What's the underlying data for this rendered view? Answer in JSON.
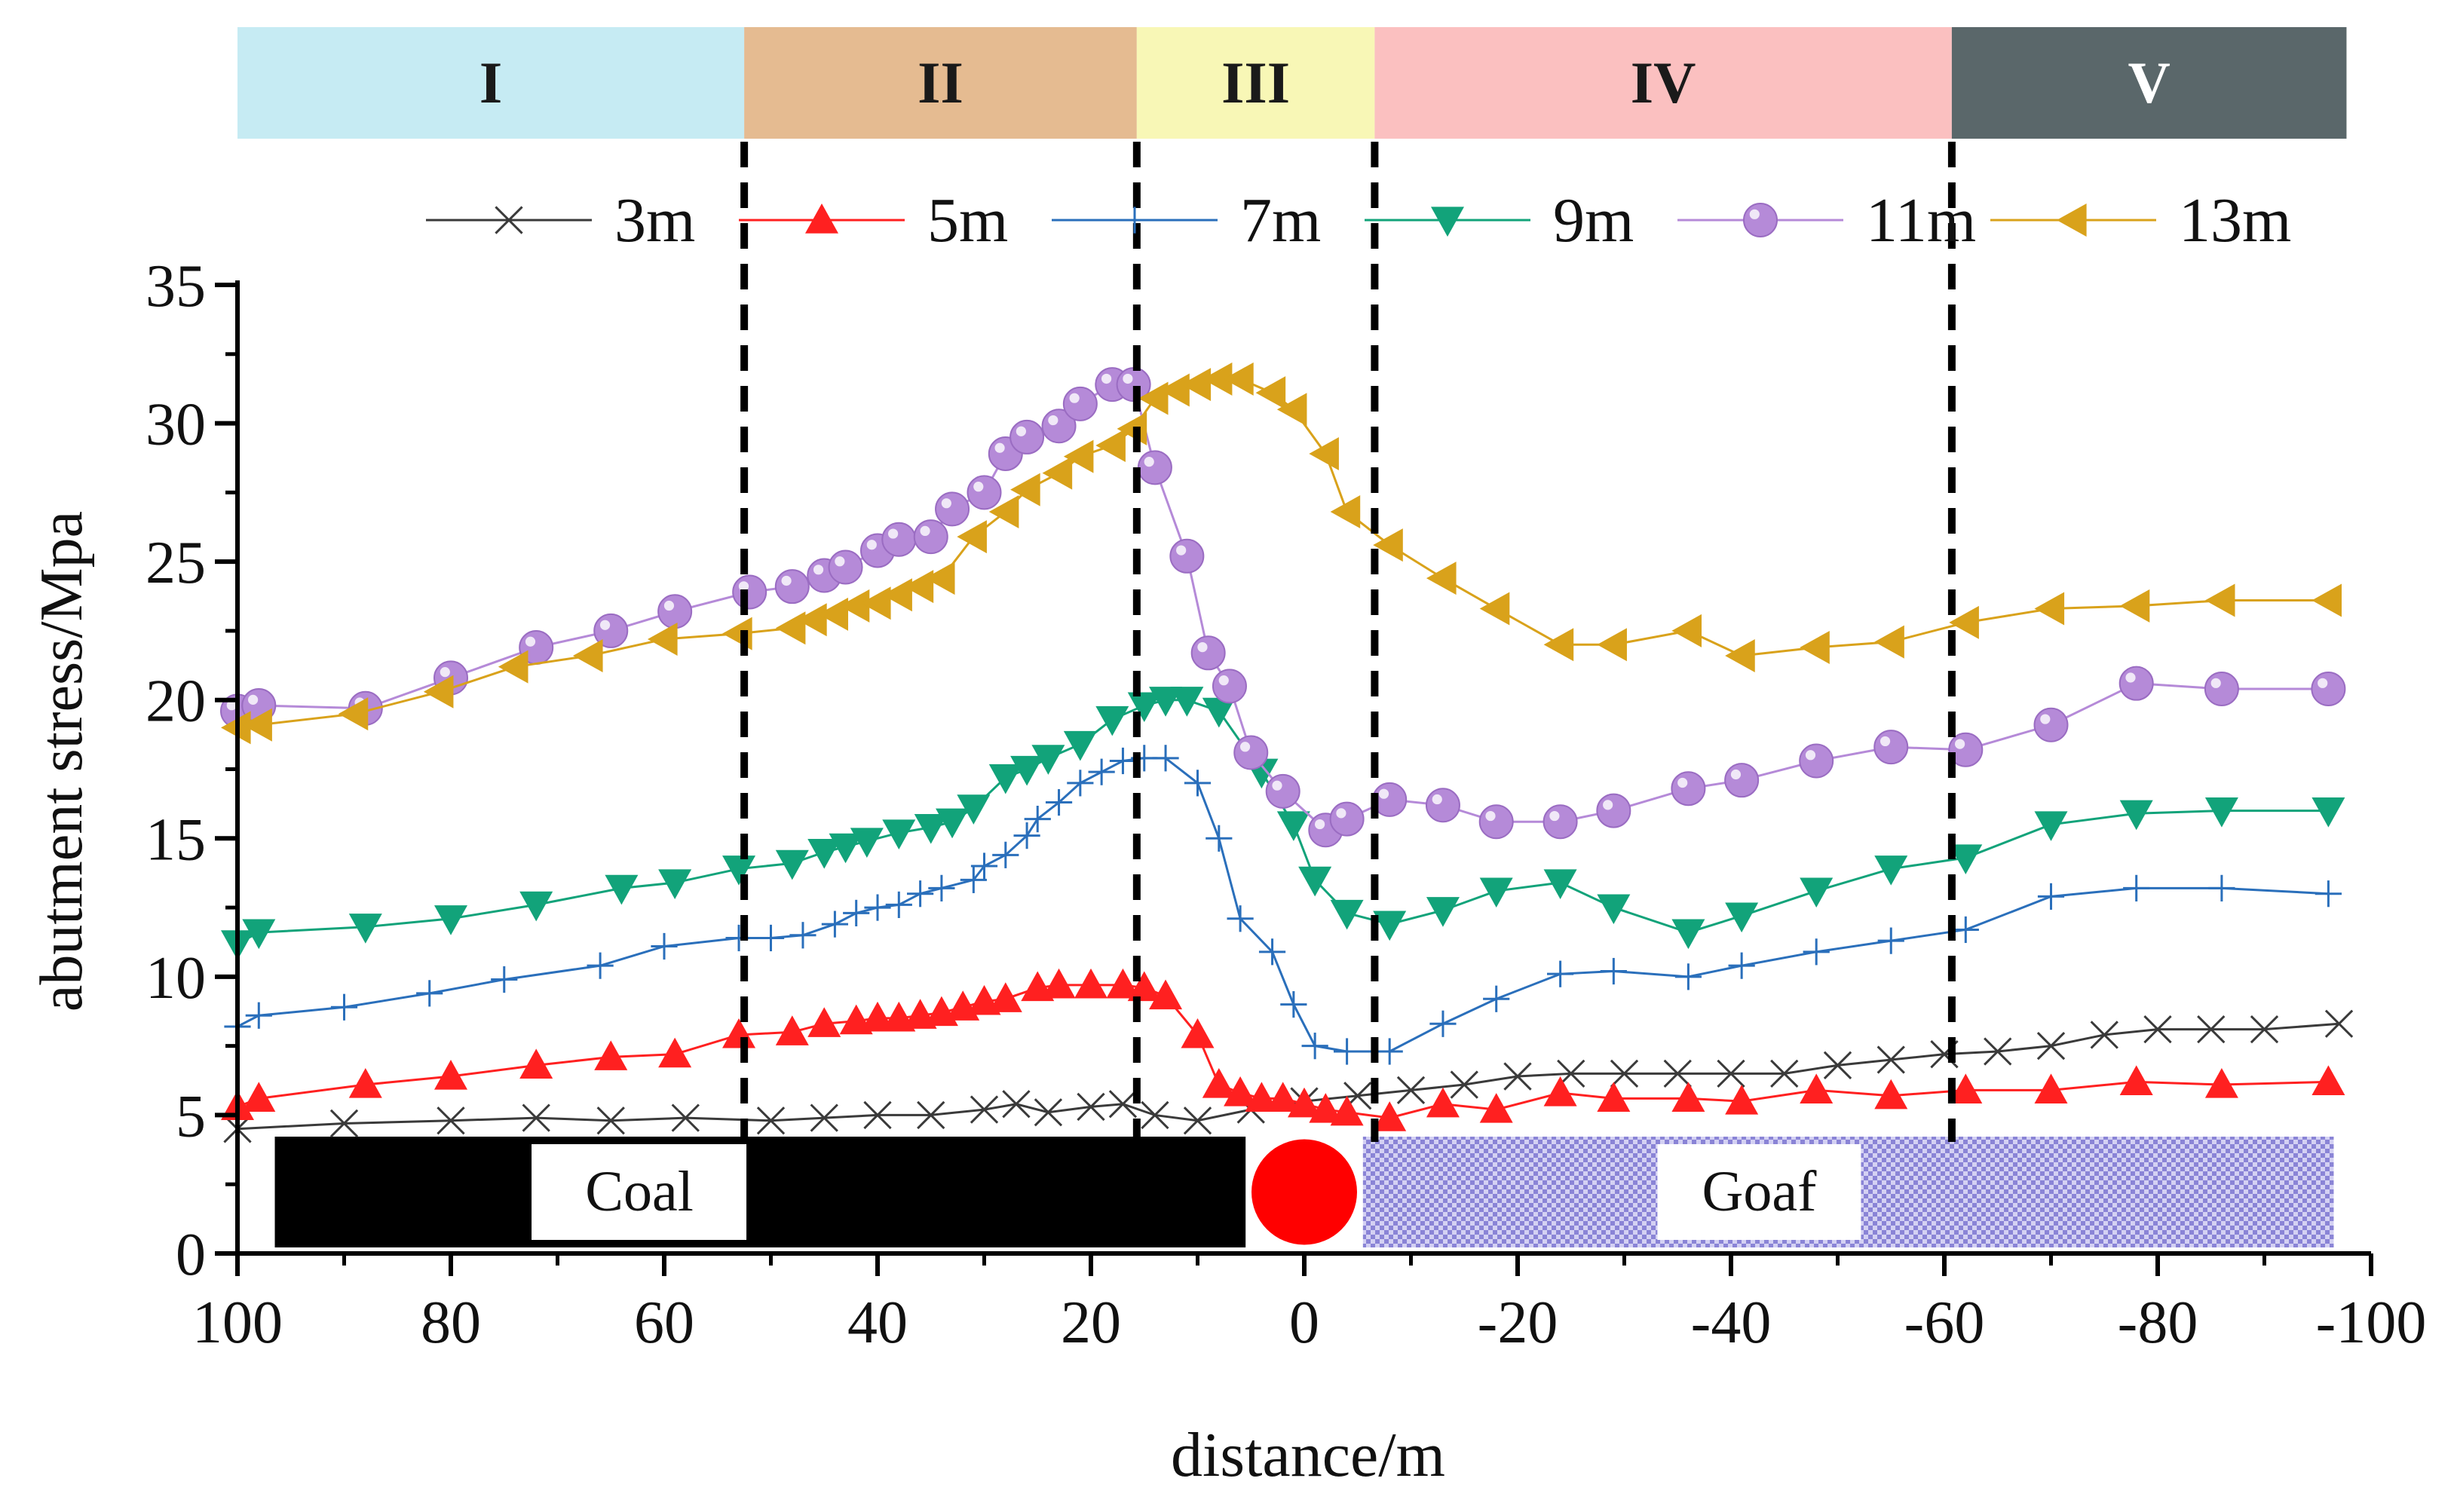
{
  "chart_data": {
    "type": "line",
    "title": "",
    "xlabel": "distance/m",
    "ylabel": "abutment stress/Mpa",
    "xlim": [
      100,
      -100
    ],
    "ylim": [
      0,
      35
    ],
    "x_ticks": [
      100,
      80,
      60,
      40,
      20,
      0,
      -20,
      -40,
      -60,
      -80,
      -100
    ],
    "x_tick_labels": [
      "100",
      "80",
      "60",
      "40",
      "20",
      "0",
      "-20",
      "-40",
      "-60",
      "-80",
      "-100"
    ],
    "y_ticks": [
      0,
      5,
      10,
      15,
      20,
      25,
      30,
      35
    ],
    "y_tick_labels": [
      "0",
      "5",
      "10",
      "15",
      "20",
      "25",
      "30",
      "35"
    ],
    "grid": false,
    "legend_position": "top",
    "zones": [
      {
        "label": "I",
        "from": 100,
        "to": 52.5,
        "color": "#c6ebf3",
        "text_color": "#1a1a1a"
      },
      {
        "label": "II",
        "from": 52.5,
        "to": 15.7,
        "color": "#e5bb91",
        "text_color": "#1a1a1a"
      },
      {
        "label": "III",
        "from": 15.7,
        "to": -6.6,
        "color": "#f8f7b6",
        "text_color": "#1a1a1a"
      },
      {
        "label": "IV",
        "from": -6.6,
        "to": -60.7,
        "color": "#fbc0c0",
        "text_color": "#1a1a1a"
      },
      {
        "label": "V",
        "from": -60.7,
        "to": -97.7,
        "color": "#5a676a",
        "text_color": "#ffffff"
      }
    ],
    "boundaries": [
      52.5,
      15.7,
      -6.6,
      -60.7
    ],
    "strata": {
      "coal_label": "Coal",
      "goaf_label": "Goaf",
      "coal_from": 96.5,
      "coal_to": 5.5,
      "face_position": 0,
      "goaf_from": -5.5,
      "goaf_to": -96.5,
      "coal_color": "#000000",
      "goaf_color": "#8a84d6",
      "face_color": "#ff0000"
    },
    "series": [
      {
        "name": "3m",
        "color": "#3a3a3a",
        "marker": "x",
        "x": [
          100,
          90,
          80,
          72,
          65,
          58,
          50,
          45,
          40,
          35,
          30,
          27,
          24,
          20,
          17,
          14,
          10,
          5,
          0,
          -5,
          -10,
          -15,
          -20,
          -25,
          -30,
          -35,
          -40,
          -45,
          -50,
          -55,
          -60,
          -65,
          -70,
          -75,
          -80,
          -85,
          -90,
          -97
        ],
        "values": [
          4.5,
          4.7,
          4.8,
          4.9,
          4.8,
          4.9,
          4.8,
          4.9,
          5.0,
          5.0,
          5.2,
          5.4,
          5.1,
          5.3,
          5.4,
          5.0,
          4.8,
          5.2,
          5.5,
          5.7,
          5.9,
          6.1,
          6.4,
          6.5,
          6.5,
          6.5,
          6.5,
          6.5,
          6.8,
          7.0,
          7.2,
          7.3,
          7.5,
          7.9,
          8.1,
          8.1,
          8.1,
          8.3
        ]
      },
      {
        "name": "5m",
        "color": "#ff2020",
        "marker": "triangle-up",
        "x": [
          100,
          98,
          88,
          80,
          72,
          65,
          59,
          53,
          48,
          45,
          42,
          40,
          38,
          36,
          34,
          32,
          30,
          28,
          25,
          23,
          20,
          17,
          15,
          13,
          10,
          8,
          6,
          4,
          2,
          0,
          -2,
          -4,
          -8,
          -13,
          -18,
          -24,
          -29,
          -36,
          -41,
          -48,
          -55,
          -62,
          -70,
          -78,
          -86,
          -96
        ],
        "values": [
          5.3,
          5.6,
          6.1,
          6.4,
          6.8,
          7.1,
          7.2,
          7.9,
          8.0,
          8.3,
          8.4,
          8.5,
          8.5,
          8.6,
          8.7,
          8.9,
          9.1,
          9.2,
          9.6,
          9.7,
          9.7,
          9.7,
          9.6,
          9.3,
          7.9,
          6.1,
          5.8,
          5.6,
          5.6,
          5.4,
          5.2,
          5.1,
          4.9,
          5.4,
          5.2,
          5.8,
          5.6,
          5.6,
          5.5,
          5.9,
          5.7,
          5.9,
          5.9,
          6.2,
          6.1,
          6.2
        ]
      },
      {
        "name": "7m",
        "color": "#2a6fbb",
        "marker": "plus",
        "x": [
          100,
          98,
          90,
          82,
          75,
          66,
          60,
          53,
          50,
          47,
          44,
          42,
          40,
          38,
          36,
          34,
          31,
          30,
          28,
          26,
          25,
          23,
          21,
          19,
          17,
          15,
          13,
          10,
          8,
          6,
          3,
          1,
          -1,
          -4,
          -8,
          -13,
          -18,
          -24,
          -29,
          -36,
          -41,
          -48,
          -55,
          -62,
          -70,
          -78,
          -86,
          -96
        ],
        "values": [
          8.2,
          8.6,
          8.9,
          9.4,
          9.9,
          10.4,
          11.1,
          11.4,
          11.4,
          11.5,
          11.9,
          12.3,
          12.5,
          12.6,
          13.0,
          13.2,
          13.5,
          14.0,
          14.4,
          15.1,
          15.7,
          16.3,
          17.0,
          17.4,
          17.8,
          17.9,
          17.9,
          17.0,
          15.0,
          12.1,
          10.9,
          9.0,
          7.5,
          7.3,
          7.3,
          8.3,
          9.2,
          10.1,
          10.2,
          10.0,
          10.4,
          10.9,
          11.3,
          11.7,
          12.9,
          13.2,
          13.2,
          13.0
        ]
      },
      {
        "name": "9m",
        "color": "#12a37a",
        "marker": "triangle-down",
        "x": [
          100,
          98,
          88,
          80,
          72,
          64,
          59,
          53,
          48,
          45,
          43,
          41,
          38,
          35,
          33,
          31,
          28,
          26,
          24,
          21,
          18,
          15,
          13,
          11,
          8,
          4,
          1,
          -1,
          -4,
          -8,
          -13,
          -18,
          -24,
          -29,
          -36,
          -41,
          -48,
          -55,
          -62,
          -70,
          -78,
          -86,
          -96
        ],
        "values": [
          11.2,
          11.6,
          11.8,
          12.1,
          12.6,
          13.2,
          13.4,
          13.9,
          14.1,
          14.5,
          14.7,
          14.9,
          15.2,
          15.4,
          15.6,
          16.1,
          17.2,
          17.5,
          17.9,
          18.4,
          19.3,
          19.8,
          20.0,
          20.0,
          19.6,
          17.4,
          15.5,
          13.5,
          12.3,
          11.9,
          12.4,
          13.1,
          13.4,
          12.5,
          11.6,
          12.2,
          13.1,
          13.9,
          14.3,
          15.5,
          15.9,
          16.0,
          16.0
        ]
      },
      {
        "name": "11m",
        "color": "#b58ad8",
        "marker": "circle",
        "x": [
          100,
          98,
          88,
          80,
          72,
          65,
          59,
          52,
          48,
          45,
          43,
          40,
          38,
          35,
          33,
          30,
          28,
          26,
          23,
          21,
          18,
          16,
          14,
          11,
          9,
          7,
          5,
          2,
          -2,
          -4,
          -8,
          -13,
          -18,
          -24,
          -29,
          -36,
          -41,
          -48,
          -55,
          -62,
          -70,
          -78,
          -86,
          -96
        ],
        "values": [
          19.6,
          19.8,
          19.7,
          20.8,
          21.9,
          22.5,
          23.2,
          23.9,
          24.1,
          24.5,
          24.8,
          25.4,
          25.8,
          25.9,
          26.9,
          27.5,
          28.9,
          29.5,
          29.9,
          30.7,
          31.4,
          31.4,
          28.4,
          25.2,
          21.7,
          20.5,
          18.1,
          16.7,
          15.3,
          15.7,
          16.4,
          16.2,
          15.6,
          15.6,
          16.0,
          16.8,
          17.1,
          17.8,
          18.3,
          18.2,
          19.1,
          20.6,
          20.4,
          20.4
        ]
      },
      {
        "name": "13m",
        "color": "#d9a21b",
        "marker": "triangle-left",
        "x": [
          100,
          98,
          89,
          81,
          74,
          67,
          60,
          53,
          48,
          46,
          44,
          42,
          40,
          38,
          36,
          34,
          31,
          28,
          26,
          23,
          21,
          18,
          16,
          14,
          12,
          10,
          8,
          6,
          3,
          1,
          -2,
          -4,
          -8,
          -13,
          -18,
          -24,
          -29,
          -36,
          -41,
          -48,
          -55,
          -62,
          -70,
          -78,
          -86,
          -96
        ],
        "values": [
          19.0,
          19.1,
          19.5,
          20.3,
          21.2,
          21.6,
          22.2,
          22.4,
          22.6,
          22.9,
          23.1,
          23.4,
          23.5,
          23.8,
          24.1,
          24.4,
          25.9,
          26.8,
          27.6,
          28.2,
          28.8,
          29.2,
          29.8,
          30.9,
          31.2,
          31.4,
          31.6,
          31.6,
          31.1,
          30.5,
          28.9,
          26.8,
          25.6,
          24.4,
          23.3,
          22.0,
          22.0,
          22.5,
          21.6,
          21.9,
          22.1,
          22.8,
          23.3,
          23.4,
          23.6,
          23.6
        ]
      }
    ]
  }
}
